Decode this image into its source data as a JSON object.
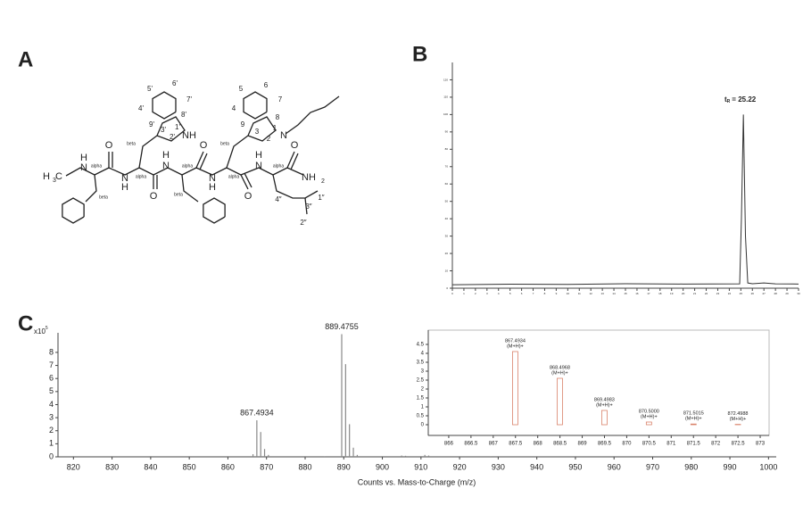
{
  "figure": {
    "panel_labels": [
      "A",
      "B",
      "C"
    ],
    "structure_labels": [
      "H",
      "N",
      "H",
      "3",
      "C",
      "alpha",
      "beta",
      "O",
      "N",
      "H",
      "beta",
      "alpha",
      "O",
      "H",
      "N",
      "alpha",
      "beta",
      "O",
      "N",
      "H",
      "beta",
      "alpha",
      "O",
      "H",
      "N",
      "alpha",
      "O",
      "NH",
      "2",
      "4″",
      "3″",
      "1″",
      "2″",
      "5'",
      "6'",
      "7'",
      "4'",
      "8'",
      "9'",
      "3'",
      "1'",
      "2'",
      "NH",
      "5",
      "6",
      "7",
      "4",
      "8",
      "9",
      "3",
      "2",
      "1",
      "N"
    ]
  },
  "chart_data": [
    {
      "type": "line",
      "color": "#333333",
      "annotation": {
        "symbol": "t",
        "subscript": "R",
        "text": "= 25.22"
      },
      "x": [
        0,
        5,
        10,
        15,
        20,
        24.9,
        25.05,
        25.22,
        25.4,
        25.6,
        26,
        27,
        28,
        30
      ],
      "values": [
        2,
        2.3,
        2.2,
        2.6,
        2.4,
        2.5,
        40,
        100,
        30,
        3,
        2.6,
        3,
        2.5,
        2.4
      ],
      "xlim": [
        0,
        30
      ],
      "xticks": [
        0,
        1,
        2,
        3,
        4,
        5,
        6,
        7,
        8,
        9,
        10,
        11,
        12,
        13,
        14,
        15,
        16,
        17,
        18,
        19,
        20,
        21,
        22,
        23,
        24,
        25,
        26,
        27,
        28,
        29,
        30
      ],
      "ylim": [
        0,
        130
      ],
      "yticks": [
        0,
        10,
        20,
        30,
        40,
        50,
        60,
        70,
        80,
        90,
        100,
        110,
        120
      ]
    },
    {
      "type": "stem",
      "color": "#888888",
      "x_label": "Counts vs. Mass-to-Charge (m/z)",
      "y_multiplier": {
        "base": "x10",
        "exponent": "5"
      },
      "x": [
        866.5,
        867.4934,
        868.4968,
        869.4983,
        870.5,
        885,
        889.4755,
        890.48,
        891.48,
        892.49,
        893.5,
        905,
        906,
        911,
        912,
        928
      ],
      "values": [
        0.2,
        2.8,
        1.9,
        0.6,
        0.15,
        0.05,
        9.4,
        7.1,
        2.5,
        0.7,
        0.15,
        0.1,
        0.08,
        0.15,
        0.1,
        0.05
      ],
      "point_labels": [
        null,
        "867.4934",
        null,
        null,
        null,
        null,
        "889.4755",
        null,
        null,
        null,
        null,
        null,
        null,
        null,
        null,
        null
      ],
      "xlim": [
        816,
        1002
      ],
      "xticks": [
        820,
        830,
        840,
        850,
        860,
        870,
        880,
        890,
        900,
        910,
        920,
        930,
        940,
        950,
        960,
        970,
        980,
        990,
        1000
      ],
      "ylim": [
        0,
        9.5
      ],
      "yticks": [
        0,
        1,
        2,
        3,
        4,
        5,
        6,
        7,
        8
      ]
    },
    {
      "type": "stem",
      "color": "#d9826a",
      "y_multiplier": {
        "base": "x10",
        "exponent": "5"
      },
      "x": [
        867.4934,
        868.4968,
        869.4983,
        870.5,
        871.5015,
        872.4988
      ],
      "values": [
        4.1,
        2.6,
        0.8,
        0.15,
        0.04,
        0.02
      ],
      "point_labels": [
        "867.4934",
        "868.4968",
        "869.4983",
        "870.5000",
        "871.5015",
        "872.4988"
      ],
      "point_sublabels": [
        "(M+H)+",
        "(M+H)+",
        "(M+H)+",
        "(M+H)+",
        "(M+H)+",
        "(M+H)+"
      ],
      "xlim": [
        865.54,
        873.2
      ],
      "xticks": [
        866,
        866.5,
        867,
        867.5,
        868,
        868.5,
        869,
        869.5,
        870,
        870.5,
        871,
        871.5,
        872,
        872.5,
        873
      ],
      "ylim": [
        -0.6,
        5.3
      ],
      "yticks": [
        0,
        0.5,
        1,
        1.5,
        2,
        2.5,
        3,
        3.5,
        4,
        4.5
      ]
    }
  ]
}
